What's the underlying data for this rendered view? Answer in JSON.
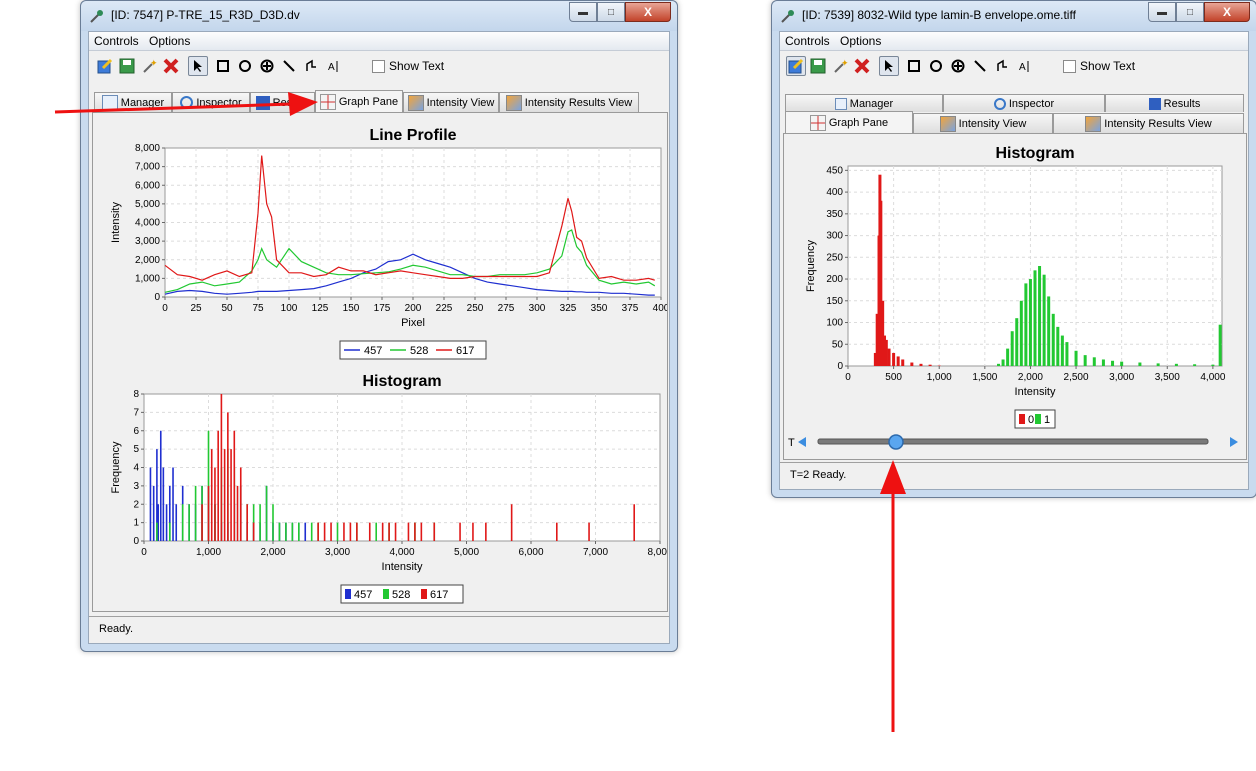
{
  "left_window": {
    "title": "[ID: 7547] P-TRE_15_R3D_D3D.dv",
    "menu": [
      "Controls",
      "Options"
    ],
    "show_text_label": "Show Text",
    "tabs": [
      "Manager",
      "Inspector",
      "Results",
      "Graph Pane",
      "Intensity View",
      "Intensity Results View"
    ],
    "active_tab": "Graph Pane",
    "status": "Ready.",
    "line_profile": {
      "title": "Line Profile",
      "xlabel": "Pixel",
      "ylabel": "Intensity",
      "xticks": [
        "0",
        "25",
        "50",
        "75",
        "100",
        "125",
        "150",
        "175",
        "200",
        "225",
        "250",
        "275",
        "300",
        "325",
        "350",
        "375",
        "400"
      ],
      "yticks": [
        "0",
        "1,000",
        "2,000",
        "3,000",
        "4,000",
        "5,000",
        "6,000",
        "7,000",
        "8,000"
      ],
      "legend": [
        "457",
        "528",
        "617"
      ]
    },
    "histogram": {
      "title": "Histogram",
      "xlabel": "Intensity",
      "ylabel": "Frequency",
      "xticks": [
        "0",
        "1,000",
        "2,000",
        "3,000",
        "4,000",
        "5,000",
        "6,000",
        "7,000",
        "8,000"
      ],
      "yticks": [
        "0",
        "1",
        "2",
        "3",
        "4",
        "5",
        "6",
        "7",
        "8"
      ],
      "legend": [
        "457",
        "528",
        "617"
      ]
    }
  },
  "right_window": {
    "title": "[ID: 7539] 8032-Wild type lamin-B envelope.ome.tiff",
    "menu": [
      "Controls",
      "Options"
    ],
    "show_text_label": "Show Text",
    "tabs_row1": [
      "Manager",
      "Inspector",
      "Results"
    ],
    "tabs_row2": [
      "Graph Pane",
      "Intensity View",
      "Intensity Results View"
    ],
    "active_tab": "Graph Pane",
    "slider_label": "T",
    "status": "T=2 Ready.",
    "histogram": {
      "title": "Histogram",
      "xlabel": "Intensity",
      "ylabel": "Frequency",
      "xticks": [
        "0",
        "500",
        "1,000",
        "1,500",
        "2,000",
        "2,500",
        "3,000",
        "3,500",
        "4,000"
      ],
      "yticks": [
        "0",
        "50",
        "100",
        "150",
        "200",
        "250",
        "300",
        "350",
        "400",
        "450"
      ],
      "legend": [
        "0",
        "1"
      ]
    }
  },
  "colors": {
    "blue": "#1f2fd0",
    "green": "#22c832",
    "red": "#e01818",
    "arrow": "#ee1111"
  },
  "chart_data": [
    {
      "type": "line",
      "title": "Line Profile",
      "xlabel": "Pixel",
      "ylabel": "Intensity",
      "xlim": [
        0,
        400
      ],
      "ylim": [
        0,
        8000
      ],
      "grid": true,
      "legend": "bottom",
      "x": [
        0,
        10,
        20,
        30,
        40,
        50,
        60,
        70,
        75,
        78,
        82,
        86,
        90,
        100,
        110,
        120,
        130,
        140,
        150,
        160,
        170,
        180,
        190,
        200,
        210,
        220,
        230,
        240,
        250,
        260,
        270,
        280,
        290,
        300,
        310,
        320,
        325,
        328,
        332,
        336,
        340,
        350,
        360,
        370,
        380,
        390,
        395
      ],
      "series": [
        {
          "name": "457",
          "color": "#1f2fd0",
          "values": [
            150,
            300,
            350,
            300,
            200,
            150,
            200,
            250,
            300,
            300,
            300,
            300,
            300,
            350,
            400,
            450,
            600,
            800,
            1000,
            1300,
            1500,
            1900,
            2000,
            2300,
            2000,
            1800,
            1600,
            1300,
            1000,
            800,
            700,
            600,
            500,
            400,
            350,
            300,
            300,
            300,
            280,
            280,
            250,
            250,
            200,
            200,
            150,
            100,
            100
          ]
        },
        {
          "name": "528",
          "color": "#22c832",
          "values": [
            250,
            400,
            700,
            800,
            600,
            700,
            800,
            1400,
            2000,
            2600,
            2000,
            1800,
            1600,
            2600,
            1900,
            1600,
            1300,
            1200,
            1200,
            1250,
            1300,
            1350,
            1500,
            1700,
            1600,
            1400,
            1200,
            1200,
            1100,
            1100,
            1200,
            1200,
            1200,
            1300,
            1500,
            2200,
            3500,
            3600,
            2700,
            2400,
            1700,
            900,
            700,
            800,
            700,
            800,
            600
          ]
        },
        {
          "name": "617",
          "color": "#e01818",
          "values": [
            1700,
            1200,
            1100,
            900,
            1200,
            1400,
            1100,
            1300,
            4500,
            7600,
            5000,
            4300,
            2000,
            1300,
            1300,
            1100,
            1200,
            1600,
            1400,
            1400,
            1200,
            1300,
            1400,
            1300,
            1200,
            1100,
            1000,
            1000,
            1100,
            1100,
            1100,
            1100,
            1100,
            1100,
            1300,
            3800,
            5300,
            4600,
            3200,
            3000,
            2100,
            1000,
            1100,
            900,
            900,
            1000,
            900
          ]
        }
      ]
    },
    {
      "type": "bar",
      "title": "Histogram",
      "xlabel": "Intensity",
      "ylabel": "Frequency",
      "xlim": [
        0,
        8000
      ],
      "ylim": [
        0,
        8
      ],
      "grid": true,
      "legend": "bottom",
      "series": [
        {
          "name": "457",
          "color": "#1f2fd0",
          "x": [
            100,
            150,
            200,
            220,
            260,
            300,
            350,
            400,
            450,
            500,
            600,
            700,
            800,
            900,
            1000,
            1100,
            1200,
            1300,
            1400,
            1500,
            1600,
            1700,
            1800,
            1900,
            2000,
            2100,
            2200,
            2300,
            2400,
            2500
          ],
          "values": [
            4,
            3,
            5,
            2,
            6,
            4,
            2,
            3,
            4,
            2,
            3,
            2,
            2,
            3,
            3,
            2,
            1,
            1,
            2,
            3,
            1,
            1,
            1,
            3,
            1,
            1,
            1,
            1,
            1,
            1
          ]
        },
        {
          "name": "528",
          "color": "#22c832",
          "x": [
            200,
            400,
            600,
            700,
            800,
            900,
            1000,
            1100,
            1200,
            1300,
            1400,
            1500,
            1600,
            1700,
            1800,
            1900,
            2000,
            2100,
            2200,
            2300,
            2400,
            2600,
            2700,
            3000,
            3300,
            3600,
            3800,
            4200,
            4500
          ],
          "values": [
            1,
            1,
            2,
            2,
            3,
            3,
            6,
            2,
            4,
            5,
            4,
            3,
            2,
            2,
            2,
            3,
            2,
            1,
            1,
            1,
            1,
            1,
            1,
            1,
            1,
            1,
            1,
            1,
            1
          ]
        },
        {
          "name": "617",
          "color": "#e01818",
          "x": [
            900,
            1000,
            1050,
            1100,
            1150,
            1200,
            1250,
            1300,
            1350,
            1400,
            1450,
            1500,
            1600,
            1700,
            2700,
            2800,
            2900,
            3100,
            3200,
            3300,
            3500,
            3700,
            3800,
            3900,
            4100,
            4200,
            4300,
            4500,
            4900,
            5100,
            5300,
            5700,
            6400,
            6900,
            7600
          ],
          "values": [
            2,
            3,
            5,
            4,
            6,
            8,
            5,
            7,
            5,
            6,
            3,
            4,
            2,
            1,
            1,
            1,
            1,
            1,
            1,
            1,
            1,
            1,
            1,
            1,
            1,
            1,
            1,
            1,
            1,
            1,
            1,
            2,
            1,
            1,
            2
          ]
        }
      ]
    },
    {
      "type": "bar",
      "title": "Histogram",
      "xlabel": "Intensity",
      "ylabel": "Frequency",
      "xlim": [
        0,
        4100
      ],
      "ylim": [
        0,
        460
      ],
      "grid": true,
      "legend": "bottom",
      "series": [
        {
          "name": "0",
          "color": "#e01818",
          "x": [
            300,
            320,
            340,
            350,
            360,
            380,
            400,
            420,
            450,
            500,
            550,
            600,
            700,
            800,
            900,
            1000
          ],
          "values": [
            30,
            120,
            300,
            440,
            380,
            150,
            70,
            60,
            40,
            30,
            22,
            15,
            8,
            5,
            3,
            1
          ]
        },
        {
          "name": "1",
          "color": "#22c832",
          "x": [
            1650,
            1700,
            1750,
            1800,
            1850,
            1900,
            1950,
            2000,
            2050,
            2100,
            2150,
            2200,
            2250,
            2300,
            2350,
            2400,
            2500,
            2600,
            2700,
            2800,
            2900,
            3000,
            3200,
            3400,
            3600,
            3800,
            4000,
            4080
          ],
          "values": [
            5,
            15,
            40,
            80,
            110,
            150,
            190,
            200,
            220,
            230,
            210,
            160,
            120,
            90,
            70,
            55,
            35,
            25,
            20,
            15,
            12,
            10,
            8,
            6,
            5,
            4,
            3,
            95
          ]
        }
      ]
    }
  ]
}
